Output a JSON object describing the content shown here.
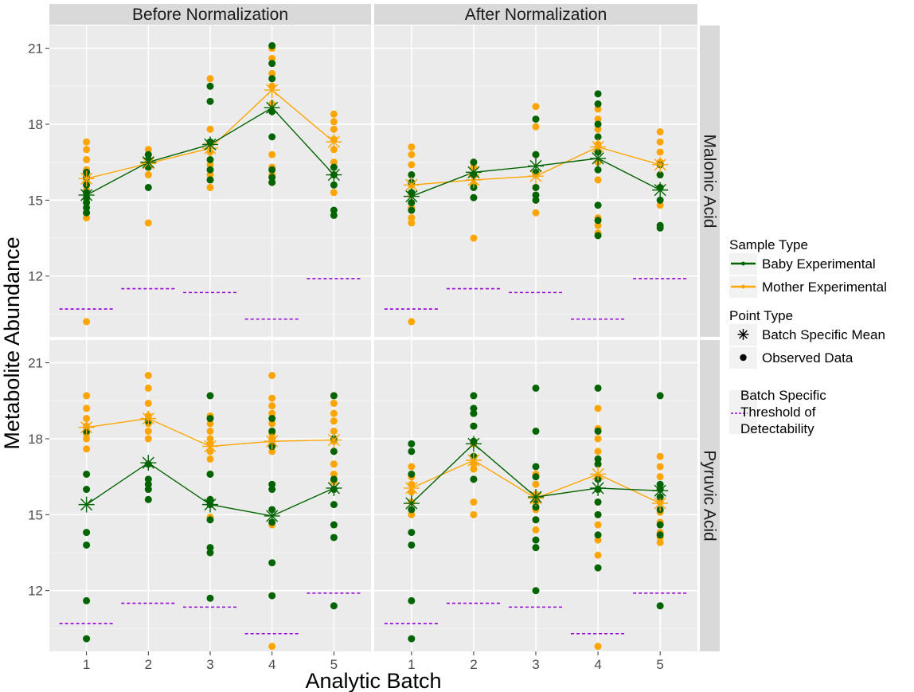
{
  "chart_data": {
    "type": "scatter",
    "xlabel": "Analytic Batch",
    "ylabel": "Metabolite Abundance",
    "x_categories": [
      1,
      2,
      3,
      4,
      5
    ],
    "ylim": [
      9.6,
      21.9
    ],
    "y_ticks": [
      12,
      15,
      18,
      21
    ],
    "grid": true,
    "legend_position": "right",
    "column_strips": [
      "Before Normalization",
      "After Normalization"
    ],
    "row_strips": [
      "Malonic Acid",
      "Pyruvic Acid"
    ],
    "colors": {
      "baby": "#006400",
      "mother": "#FFA500",
      "threshold": "#9400D3",
      "panel_bg": "#EBEBEB",
      "strip_bg": "#D9D9D9"
    },
    "legend": {
      "sample_type_title": "Sample Type",
      "sample_types": [
        {
          "key": "baby",
          "label": "Baby Experimental"
        },
        {
          "key": "mother",
          "label": "Mother Experimental"
        }
      ],
      "point_type_title": "Point Type",
      "point_types": [
        {
          "key": "mean",
          "label": "Batch Specific Mean"
        },
        {
          "key": "obs",
          "label": "Observed Data"
        }
      ],
      "threshold_lines": [
        "Batch Specific",
        "Threshold of",
        "Detectability"
      ]
    },
    "thresholds": [
      10.7,
      11.5,
      11.35,
      10.3,
      11.9
    ],
    "panels": [
      {
        "col": 0,
        "row": 0,
        "baby_means": [
          15.2,
          16.5,
          17.2,
          18.65,
          16.0
        ],
        "mother_means": [
          15.85,
          16.45,
          17.05,
          19.35,
          17.3
        ],
        "baby_points": [
          [
            14.5,
            14.7,
            14.9,
            15.1,
            15.3,
            15.6,
            15.9,
            16.1
          ],
          [
            15.5,
            16.3,
            16.6,
            16.8
          ],
          [
            15.8,
            16.2,
            16.6,
            17.3,
            18.9,
            19.5
          ],
          [
            15.7,
            15.9,
            16.2,
            17.5,
            18.5,
            19.8,
            20.4,
            21.1
          ],
          [
            14.4,
            14.6,
            15.6,
            16.0,
            16.3
          ]
        ],
        "mother_points": [
          [
            10.2,
            14.3,
            14.5,
            15.0,
            15.4,
            15.8,
            16.2,
            16.6,
            17.0,
            17.3
          ],
          [
            14.1,
            16.0,
            16.5,
            16.8,
            17.0
          ],
          [
            15.5,
            15.8,
            16.0,
            16.4,
            16.9,
            17.2,
            17.8,
            19.8
          ],
          [
            15.7,
            16.0,
            16.3,
            16.8,
            18.8,
            19.5,
            20.0,
            20.6,
            21.0
          ],
          [
            15.3,
            16.0,
            16.5,
            17.0,
            17.4,
            17.8,
            18.1,
            18.4
          ]
        ]
      },
      {
        "col": 1,
        "row": 0,
        "baby_means": [
          15.15,
          16.1,
          16.35,
          16.65,
          15.4
        ],
        "mother_means": [
          15.6,
          15.8,
          15.95,
          17.1,
          16.4
        ],
        "baby_points": [
          [
            14.6,
            14.9,
            15.3,
            15.7,
            16.0
          ],
          [
            15.1,
            15.5,
            16.0,
            16.5
          ],
          [
            15.0,
            15.2,
            15.5,
            16.1,
            16.8,
            18.2
          ],
          [
            13.6,
            14.2,
            14.8,
            16.2,
            16.9,
            17.5,
            18.0,
            18.8,
            19.2
          ],
          [
            13.9,
            14.0,
            15.0,
            15.5,
            16.0,
            16.4
          ]
        ],
        "mother_points": [
          [
            10.2,
            14.1,
            14.3,
            14.7,
            15.2,
            15.6,
            16.0,
            16.4,
            16.8,
            17.1
          ],
          [
            13.5,
            15.6,
            16.0,
            16.3
          ],
          [
            14.5,
            15.0,
            15.5,
            16.0,
            16.8,
            17.9,
            18.7
          ],
          [
            13.7,
            14.0,
            14.3,
            15.8,
            16.5,
            17.2,
            17.8,
            18.2,
            18.6
          ],
          [
            14.8,
            15.5,
            16.0,
            16.5,
            16.9,
            17.3,
            17.7
          ]
        ]
      },
      {
        "col": 0,
        "row": 1,
        "baby_means": [
          15.4,
          17.05,
          15.4,
          14.95,
          16.05
        ],
        "mother_means": [
          18.45,
          18.8,
          17.7,
          17.9,
          17.95
        ],
        "baby_points": [
          [
            10.1,
            11.6,
            13.8,
            14.3,
            16.0,
            16.6,
            18.3
          ],
          [
            15.6,
            16.0,
            16.2,
            16.4,
            17.0,
            18.7
          ],
          [
            11.7,
            13.5,
            13.7,
            14.8,
            15.4,
            15.6,
            16.6,
            18.8,
            19.7
          ],
          [
            11.8,
            13.1,
            14.7,
            15.2,
            16.0,
            16.2,
            17.7,
            18.3,
            18.8
          ],
          [
            11.4,
            14.1,
            14.6,
            15.4,
            16.0,
            16.4,
            17.5,
            18.0,
            19.7
          ]
        ],
        "mother_points": [
          [
            17.6,
            18.0,
            18.2,
            18.5,
            18.8,
            19.2,
            19.7
          ],
          [
            18.0,
            18.3,
            18.6,
            18.9,
            19.4,
            20.0,
            20.5
          ],
          [
            14.9,
            15.6,
            16.6,
            17.2,
            17.5,
            17.8,
            18.0,
            18.3,
            18.6,
            18.9
          ],
          [
            9.8,
            14.6,
            17.5,
            17.8,
            18.0,
            18.2,
            18.6,
            19.0,
            19.3,
            19.6,
            20.5
          ],
          [
            16.3,
            16.6,
            17.0,
            17.5,
            17.9,
            18.3,
            18.7,
            19.0,
            19.4,
            19.7
          ]
        ]
      },
      {
        "col": 1,
        "row": 1,
        "baby_means": [
          15.45,
          17.8,
          15.7,
          16.05,
          15.95
        ],
        "mother_means": [
          16.05,
          17.15,
          15.65,
          16.6,
          15.45
        ],
        "baby_points": [
          [
            10.1,
            11.6,
            13.8,
            14.3,
            15.2,
            16.6,
            17.5,
            17.8
          ],
          [
            16.4,
            17.3,
            17.9,
            18.5,
            19.0,
            19.2,
            19.7
          ],
          [
            12.0,
            13.7,
            14.0,
            14.8,
            15.3,
            15.6,
            16.5,
            16.9,
            18.3,
            20.0
          ],
          [
            12.9,
            14.2,
            15.0,
            15.5,
            16.0,
            16.4,
            17.0,
            17.2,
            18.3,
            20.0
          ],
          [
            11.4,
            14.2,
            14.6,
            15.2,
            15.7,
            16.0,
            16.2,
            19.7
          ]
        ],
        "mother_points": [
          [
            15.0,
            15.5,
            15.9,
            16.2,
            16.5,
            16.9
          ],
          [
            15.0,
            15.5,
            16.4,
            16.8,
            17.0,
            17.3,
            17.8,
            18.5
          ],
          [
            14.4,
            14.8,
            15.2,
            15.5,
            15.8,
            16.2,
            16.6
          ],
          [
            9.8,
            13.4,
            14.0,
            14.6,
            15.0,
            15.5,
            16.0,
            16.5,
            17.0,
            17.5,
            18.0,
            18.4,
            19.2
          ],
          [
            13.9,
            14.1,
            14.3,
            14.7,
            15.1,
            15.5,
            16.0,
            16.5,
            16.9,
            17.3
          ]
        ]
      }
    ]
  }
}
